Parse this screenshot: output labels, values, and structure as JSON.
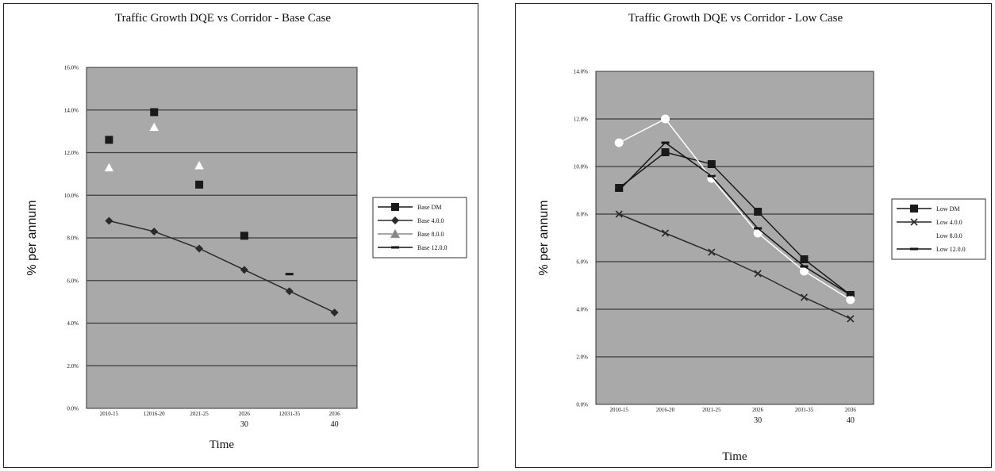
{
  "colors": {
    "plot_area": "#a9a9a9",
    "grid": "#3a3a3a",
    "series": [
      "#1a1a1a",
      "#2a2a2a",
      "#ffffff",
      "#151515"
    ]
  },
  "chart_data": [
    {
      "type": "line",
      "title": "Traffic Growth DQE vs Corridor - Base Case",
      "xlabel": "Time",
      "ylabel": "% per annum",
      "ylim": [
        0,
        0.16
      ],
      "yticks": [
        "0.0%",
        "2.0%",
        "4.0%",
        "6.0%",
        "8.0%",
        "10.0%",
        "12.0%",
        "14.0%",
        "16.0%"
      ],
      "categories": [
        "2010-15",
        "2016-20",
        "2021-25",
        "2026-30",
        "2031-35",
        "2036-40"
      ],
      "category_labels": [
        "2010-15",
        "12016-20",
        "2021-25",
        "2026",
        "12031-35",
        "2036"
      ],
      "category_sublabels": [
        "",
        "",
        "",
        "30",
        "",
        "40"
      ],
      "grid": true,
      "legend_position": "right",
      "series": [
        {
          "name": "Base DM",
          "values": [
            0.126,
            0.139,
            0.105,
            0.081,
            null,
            null
          ],
          "marker": "square",
          "line": false
        },
        {
          "name": "Base 4.0.0",
          "values": [
            0.088,
            0.083,
            0.075,
            0.065,
            0.055,
            0.045
          ],
          "marker": "diamond",
          "line": true
        },
        {
          "name": "Base 8.0.0",
          "values": [
            0.113,
            0.132,
            0.114,
            null,
            null,
            null
          ],
          "marker": "triangle",
          "line": false
        },
        {
          "name": "Base 12.0.0",
          "values": [
            null,
            null,
            null,
            null,
            0.063,
            null
          ],
          "marker": "dash",
          "line": false
        }
      ]
    },
    {
      "type": "line",
      "title": "Traffic Growth DQE vs Corridor - Low Case",
      "xlabel": "Time",
      "ylabel": "% per annum",
      "ylim": [
        0,
        0.14
      ],
      "yticks": [
        "0.0%",
        "2.0%",
        "4.0%",
        "6.0%",
        "8.0%",
        "10.0%",
        "12.0%",
        "14.0%"
      ],
      "categories": [
        "2010-15",
        "2016-20",
        "2021-25",
        "2026-30",
        "2031-35",
        "2036-40"
      ],
      "category_labels": [
        "2010-15",
        "2016-20",
        "2021-25",
        "2026",
        "2031-35",
        "2036"
      ],
      "category_sublabels": [
        "",
        "",
        "",
        "30",
        "",
        "40"
      ],
      "grid": true,
      "legend_position": "right",
      "series": [
        {
          "name": "Low DM",
          "values": [
            0.091,
            0.106,
            0.101,
            0.081,
            0.061,
            0.046
          ],
          "marker": "square",
          "line": true
        },
        {
          "name": "Low 4.0.0",
          "values": [
            0.08,
            0.072,
            0.064,
            0.055,
            0.045,
            0.036
          ],
          "marker": "x",
          "line": true
        },
        {
          "name": "Low 8.0.0",
          "values": [
            0.11,
            0.12,
            0.095,
            0.072,
            0.056,
            0.044
          ],
          "marker": "circle",
          "line": true
        },
        {
          "name": "Low 12.0.0",
          "values": [
            0.09,
            0.11,
            0.096,
            0.074,
            0.058,
            0.046
          ],
          "marker": "dash",
          "line": true
        }
      ]
    }
  ]
}
